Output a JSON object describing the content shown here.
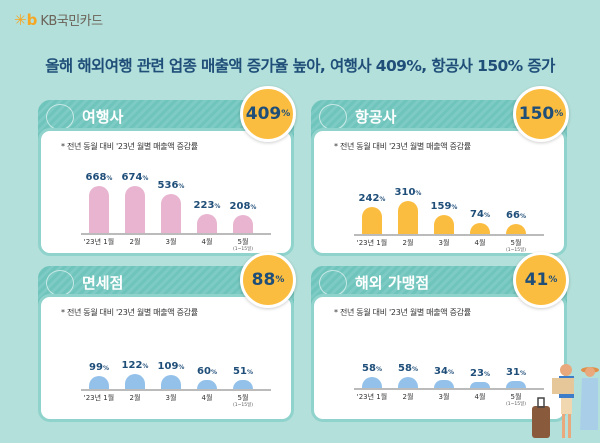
{
  "logo": {
    "mark": "✳b",
    "text": "KB국민카드"
  },
  "title": "올해 해외여행 관련 업종 매출액 증가율 높아, 여행사 409%, 항공사 150% 증가",
  "chart_data": [
    {
      "type": "bar",
      "title": "여행사",
      "badge": "409",
      "badge_unit": "%",
      "note": "* 전년 동월 대비 '23년 월별 매출액 증감률",
      "categories": [
        "'23년 1월",
        "2월",
        "3월",
        "4월",
        "5월"
      ],
      "category_note": "(1~15일)",
      "values": [
        668,
        674,
        536,
        223,
        208
      ],
      "unit": "%",
      "color": "#e8b4cf"
    },
    {
      "type": "bar",
      "title": "항공사",
      "badge": "150",
      "badge_unit": "%",
      "note": "* 전년 동월 대비 '23년 월별 매출액 증감률",
      "categories": [
        "'23년 1월",
        "2월",
        "3월",
        "4월",
        "5월"
      ],
      "category_note": "(1~15일)",
      "values": [
        242,
        310,
        159,
        74,
        66
      ],
      "unit": "%",
      "color": "#fbbd3f"
    },
    {
      "type": "bar",
      "title": "면세점",
      "badge": "88",
      "badge_unit": "%",
      "note": "* 전년 동월 대비 '23년 월별 매출액 증감률",
      "categories": [
        "'23년 1월",
        "2월",
        "3월",
        "4월",
        "5월"
      ],
      "category_note": "(1~15일)",
      "values": [
        99,
        122,
        109,
        60,
        51
      ],
      "unit": "%",
      "color": "#94c1ea"
    },
    {
      "type": "bar",
      "title": "해외 가맹점",
      "badge": "41",
      "badge_unit": "%",
      "note": "* 전년 동월 대비 '23년 월별 매출액 증감률",
      "categories": [
        "'23년 1월",
        "2월",
        "3월",
        "4월",
        "5월"
      ],
      "category_note": "(1~15일)",
      "values": [
        58,
        58,
        34,
        23,
        31
      ],
      "unit": "%",
      "color": "#94c1ea"
    }
  ],
  "icons": [
    "globe-visa-icon",
    "ticket-icon",
    "duty-free-icon",
    "globe-network-icon"
  ]
}
